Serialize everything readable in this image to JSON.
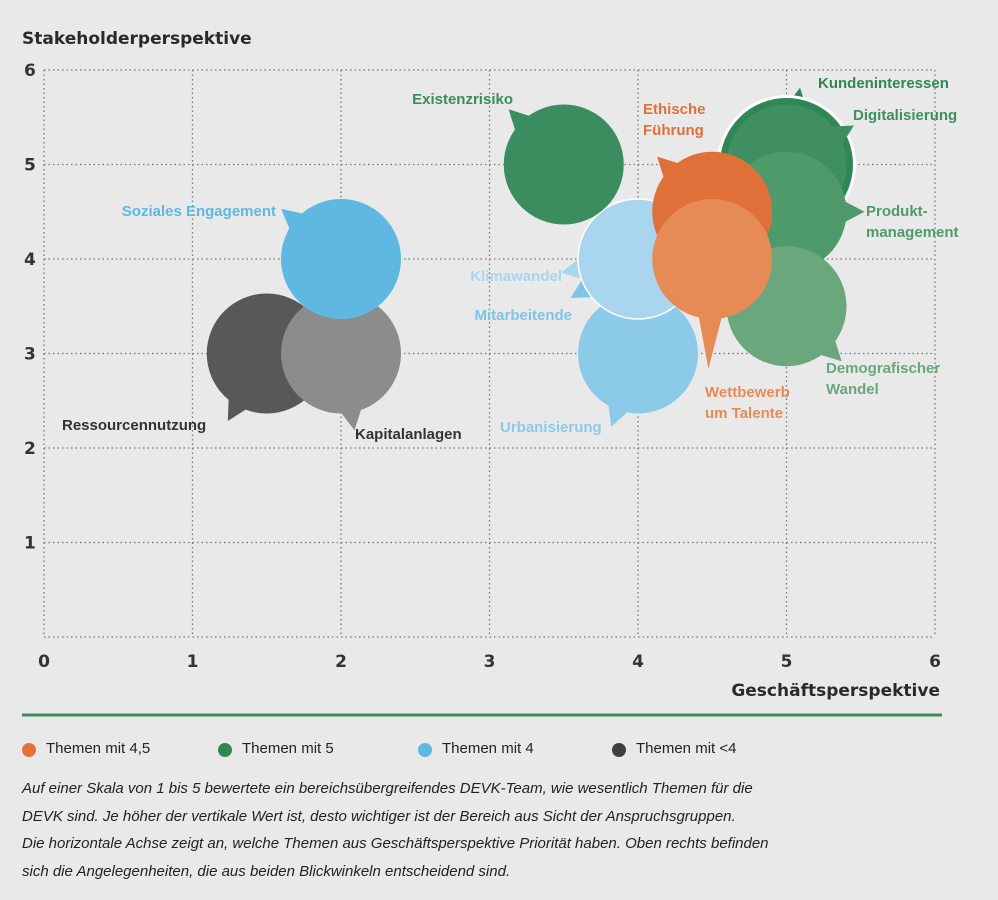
{
  "chart_data": {
    "type": "scatter",
    "y_label": "Stakeholderperspektive",
    "x_label": "Geschäftsperspektive",
    "xlim": [
      0,
      6
    ],
    "ylim": [
      0,
      6
    ],
    "xticks": [
      0,
      1,
      2,
      3,
      4,
      5,
      6
    ],
    "yticks": [
      1,
      2,
      3,
      4,
      5,
      6
    ],
    "grid": true,
    "series": [
      {
        "name": "Themen mit <4",
        "color": "#3f3f3f",
        "labels": [
          "Ressourcennutzung",
          "Kapitalanlagen"
        ],
        "x": [
          1.5,
          2
        ],
        "values": [
          3,
          3
        ],
        "colors": [
          "#585858",
          "#8c8c8c"
        ]
      },
      {
        "name": "Themen mit 4",
        "color": "#5fb8e2",
        "labels": [
          "Soziales Engagement",
          "Mitarbeitende",
          "Urbanisierung",
          "Klimawandel"
        ],
        "x": [
          2,
          4,
          4,
          4
        ],
        "values": [
          4,
          4,
          3,
          4
        ],
        "colors": [
          "#5fb8e2",
          "#7ec4e6",
          "#8ccae9",
          "#a9d5ee"
        ]
      },
      {
        "name": "Themen mit 5",
        "color": "#2f8757",
        "labels": [
          "Existenzrisiko",
          "Kundeninteressen",
          "Digitalisierung",
          "Produkt-\nmanagement",
          "Demografischer\nWandel"
        ],
        "x": [
          3.5,
          5,
          5,
          5,
          5
        ],
        "values": [
          5,
          5,
          5,
          4.5,
          3.5
        ],
        "colors": [
          "#3b8c5e",
          "#2f8757",
          "#3f8f61",
          "#4e9a6a",
          "#6aa77d"
        ]
      },
      {
        "name": "Themen mit 4,5",
        "color": "#e4703a",
        "labels": [
          "Ethische\nFührung",
          "Wettbewerb\num Talente"
        ],
        "x": [
          4.5,
          4.5
        ],
        "values": [
          4.5,
          4
        ],
        "colors": [
          "#e0703a",
          "#e68b56"
        ]
      }
    ],
    "caption_lines": [
      "Auf einer Skala von 1 bis 5 bewertete ein bereichsübergreifendes DEVK-Team, wie wesentlich Themen für die",
      "DEVK sind. Je höher der vertikale Wert ist, desto wichtiger ist der Bereich aus Sicht der Anspruchsgruppen.",
      "Die horizontale Achse zeigt an, welche Themen aus Geschäftsperspektive Priorität haben. Oben rechts befinden",
      "sich die Angelegenheiten, die aus beiden Blickwinkeln entscheidend sind."
    ]
  }
}
